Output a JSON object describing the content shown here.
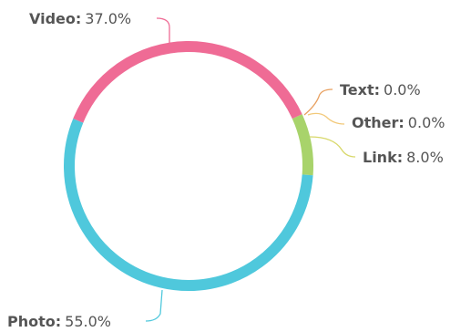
{
  "chart_data": {
    "type": "pie",
    "variant": "donut-ring",
    "slices": [
      {
        "name": "Link",
        "value": 8.0,
        "color": "#a8d36b",
        "label_value": "8.0%"
      },
      {
        "name": "Photo",
        "value": 55.0,
        "color": "#4fc8dc",
        "label_value": "55.0%"
      },
      {
        "name": "Video",
        "value": 37.0,
        "color": "#ef6b95",
        "label_value": "37.0%"
      },
      {
        "name": "Text",
        "value": 0.0,
        "color": "#e8a060",
        "label_value": "0.0%"
      },
      {
        "name": "Other",
        "value": 0.0,
        "color": "#f2c97a",
        "label_value": "0.0%"
      }
    ],
    "label_separator": ":",
    "connector_colors": {
      "Video": "#ef6b95",
      "Text": "#e8a060",
      "Other": "#f2c97a",
      "Link": "#d8d86a",
      "Photo": "#4fc8dc"
    }
  }
}
